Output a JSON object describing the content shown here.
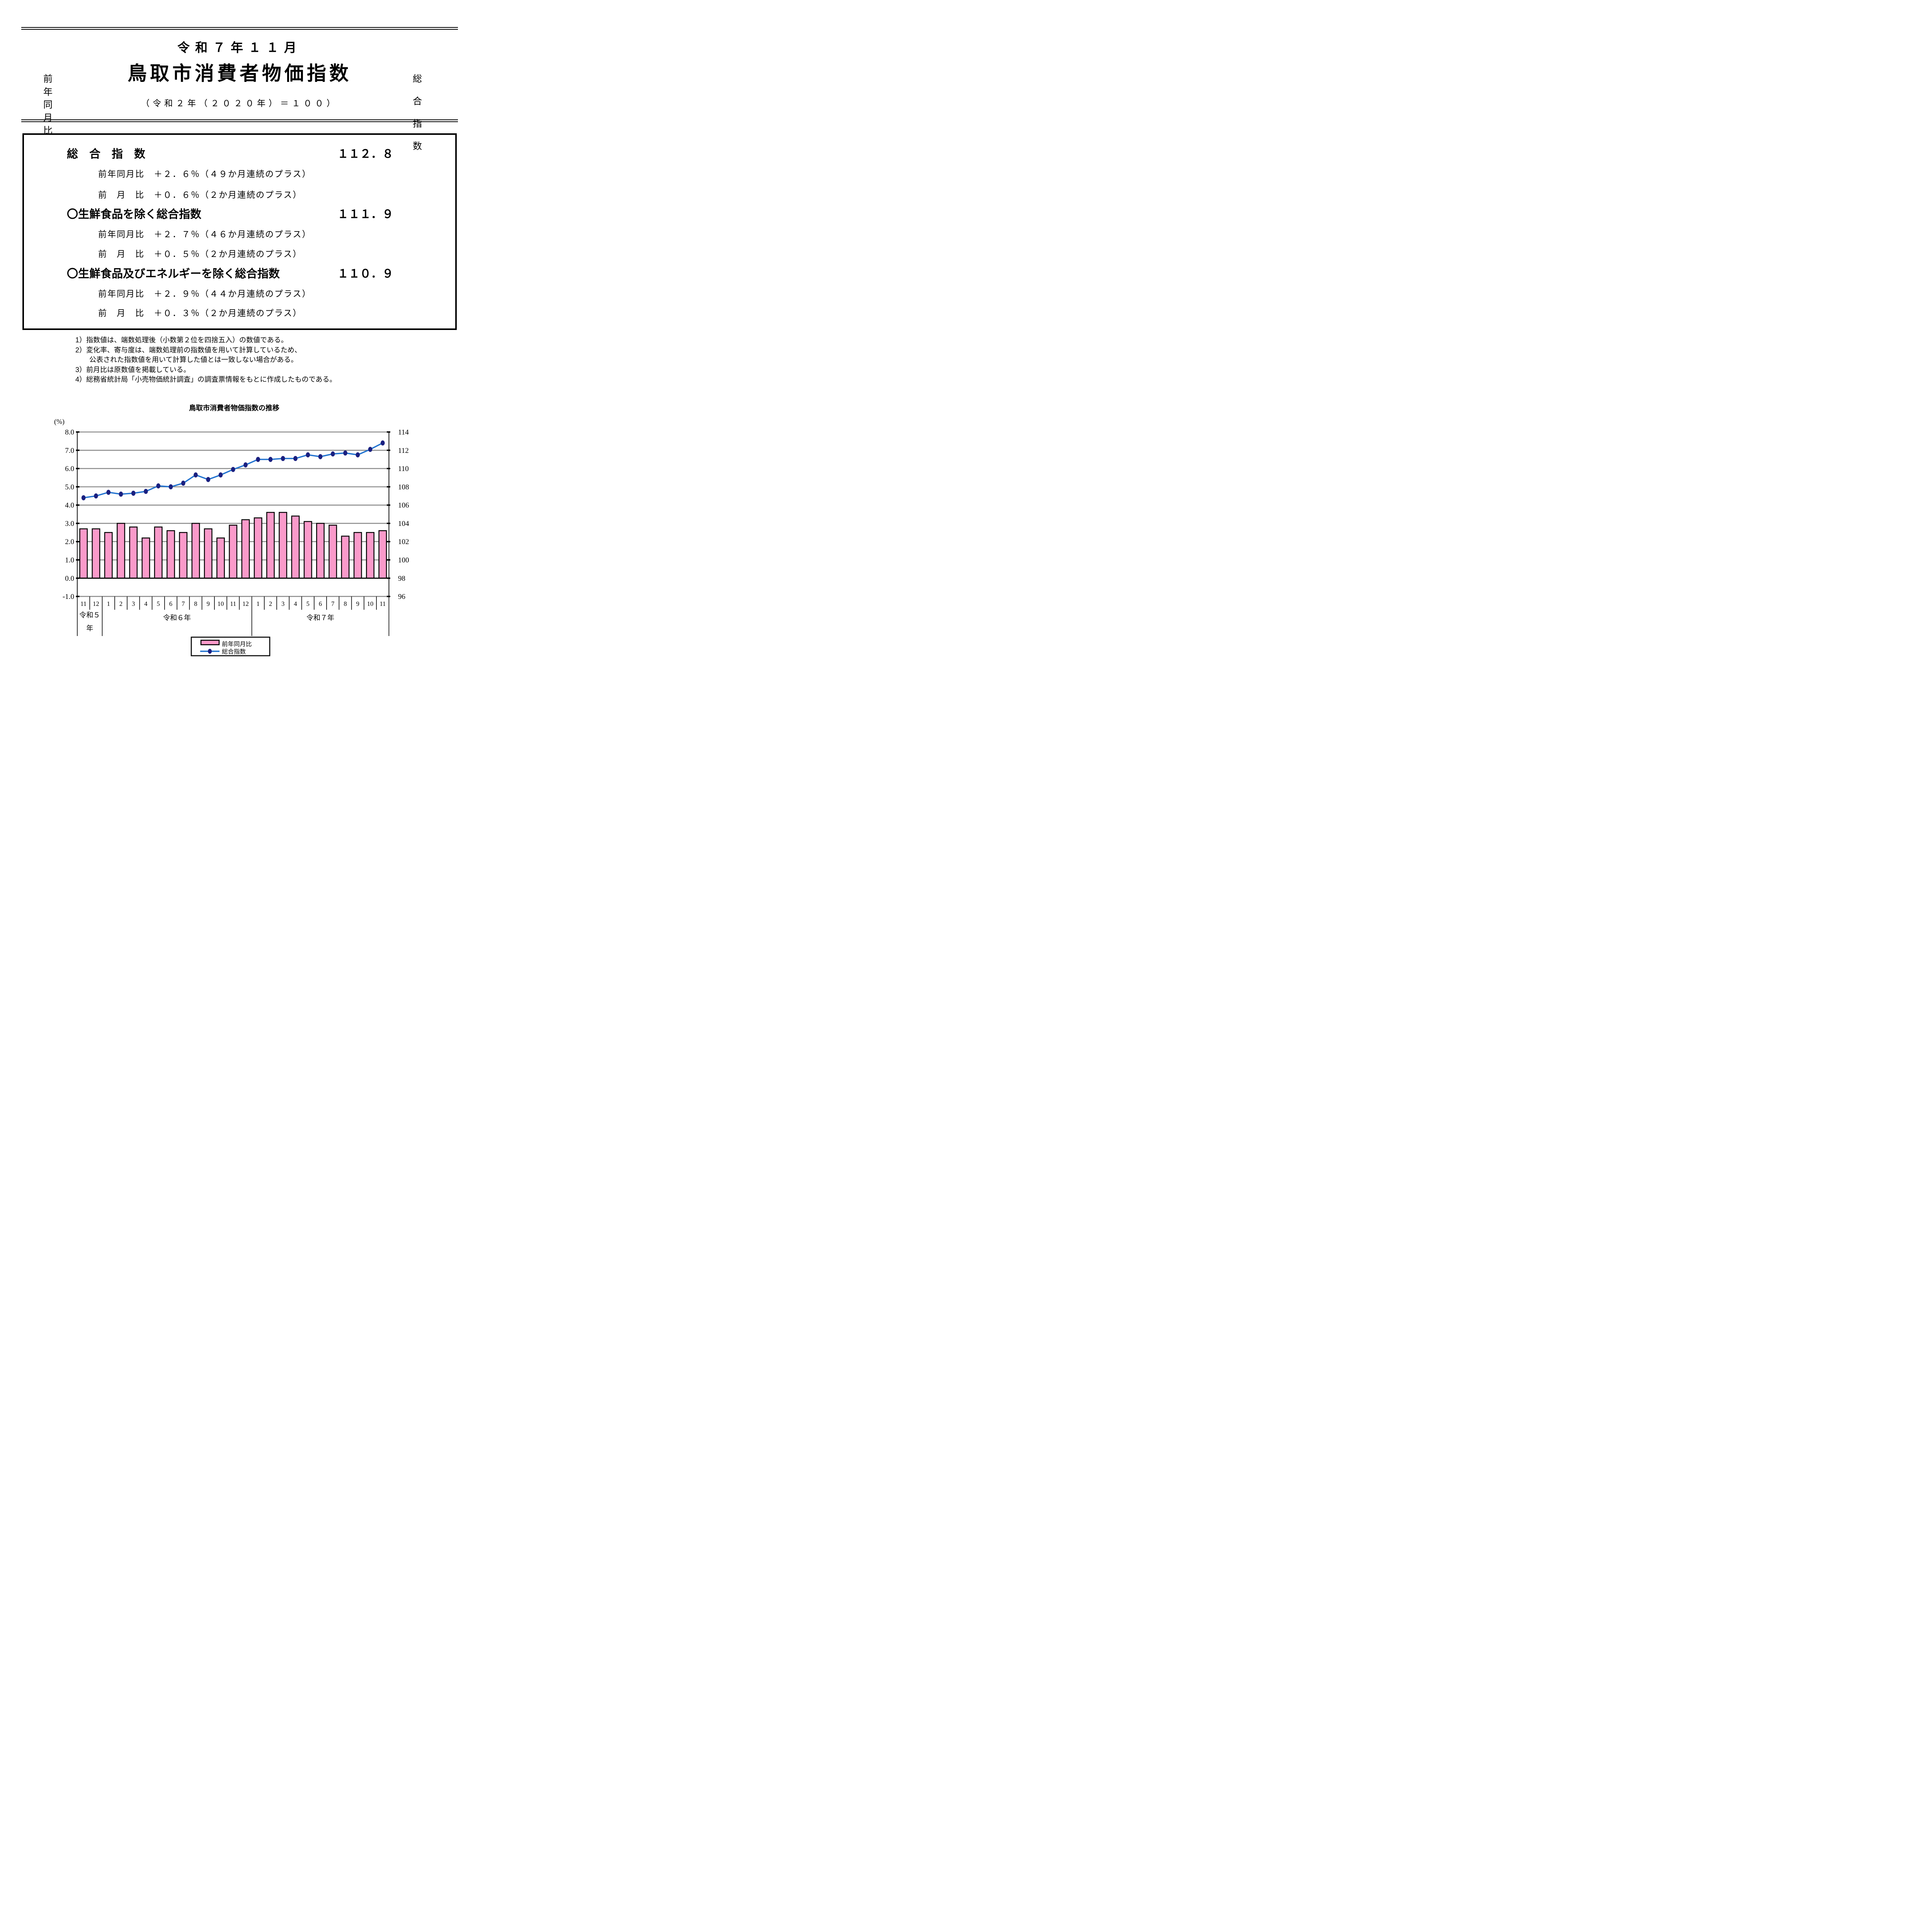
{
  "page": {
    "title_line1": "令和７年１１月",
    "title_line2": "鳥取市消費者物価指数",
    "subtitle": "（令和２年（２０２０年）＝１００）"
  },
  "summary": {
    "items": [
      {
        "label": "総　合　指　数",
        "value": "１１２．８",
        "rows": [
          {
            "text": "前年同月比　＋２．６％（４９か月連続のプラス）"
          },
          {
            "text": "前　月　比　＋０．６％（２か月連続のプラス）"
          }
        ]
      },
      {
        "label": "〇生鮮食品を除く総合指数",
        "value": "１１１．９",
        "rows": [
          {
            "text": "前年同月比　＋２．７％（４６か月連続のプラス）"
          },
          {
            "text": "前　月　比　＋０．５％（２か月連続のプラス）"
          }
        ]
      },
      {
        "label": "〇生鮮食品及びエネルギーを除く総合指数",
        "value": "１１０．９",
        "rows": [
          {
            "text": "前年同月比　＋２．９％（４４か月連続のプラス）"
          },
          {
            "text": "前　月　比　＋０．３％（２か月連続のプラス）"
          }
        ]
      }
    ]
  },
  "notes": [
    {
      "text": "1）指数値は、端数処理後（小数第２位を四捨五入）の数値である。",
      "indent": false
    },
    {
      "text": "2）変化率、寄与度は、端数処理前の指数値を用いて計算しているため、",
      "indent": false
    },
    {
      "text": "公表された指数値を用いて計算した値とは一致しない場合がある。",
      "indent": true
    },
    {
      "text": "3）前月比は原数値を掲載している。",
      "indent": false
    },
    {
      "text": "4）総務省統計局「小売物価統計調査」の調査票情報をもとに作成したものである。",
      "indent": false
    }
  ],
  "chart_data": {
    "type": "bar+line",
    "title": "鳥取市消費者物価指数の推移",
    "unit_left": "(%)",
    "left_axis_label": "前年同月比",
    "right_axis_label": "総合指数",
    "left_axis": {
      "min": -1.0,
      "max": 8.0,
      "step": 1.0
    },
    "right_axis": {
      "min": 96,
      "max": 114,
      "step": 2
    },
    "grid_color": "#8E8E8E",
    "year_groups": [
      {
        "label": "令和５年",
        "label_lines": [
          "令和５",
          "年"
        ],
        "months": [
          "11",
          "12"
        ]
      },
      {
        "label": "令和６年",
        "label_lines": [
          "令和６年"
        ],
        "months": [
          "1",
          "2",
          "3",
          "4",
          "5",
          "6",
          "7",
          "8",
          "9",
          "10",
          "11",
          "12"
        ]
      },
      {
        "label": "令和７年",
        "label_lines": [
          "令和７年"
        ],
        "months": [
          "1",
          "2",
          "3",
          "4",
          "5",
          "6",
          "7",
          "8",
          "9",
          "10",
          "11"
        ]
      }
    ],
    "series": [
      {
        "name": "前年同月比",
        "type": "bar",
        "axis": "left",
        "color": "#FA9ACA",
        "border_color": "#000000",
        "values": [
          2.7,
          2.7,
          2.5,
          3.0,
          2.8,
          2.2,
          2.8,
          2.6,
          2.5,
          3.0,
          2.7,
          2.2,
          2.9,
          3.2,
          3.3,
          3.6,
          3.6,
          3.4,
          3.1,
          3.0,
          2.9,
          2.3,
          2.5,
          2.5,
          2.6
        ]
      },
      {
        "name": "総合指数",
        "type": "line",
        "axis": "right",
        "color": "#2273D0",
        "marker_color": "#1A2080",
        "values": [
          106.8,
          107.0,
          107.4,
          107.2,
          107.3,
          107.5,
          108.1,
          108.0,
          108.4,
          109.3,
          108.8,
          109.3,
          109.9,
          110.4,
          111.0,
          111.0,
          111.1,
          111.1,
          111.5,
          111.3,
          111.6,
          111.7,
          111.5,
          112.1,
          112.8
        ]
      }
    ],
    "legend": [
      "前年同月比",
      "総合指数"
    ]
  }
}
